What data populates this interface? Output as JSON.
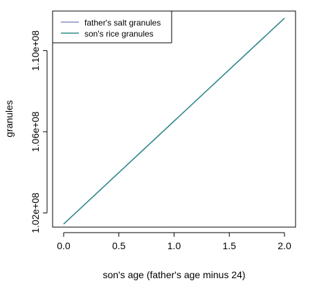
{
  "chart_data": {
    "type": "line",
    "title": "",
    "xlabel": "son's age (father's age minus 24)",
    "ylabel": "granules",
    "xlim": [
      -0.1,
      2.1
    ],
    "ylim": [
      101300000,
      111950000
    ],
    "x_ticks": [
      0.0,
      0.5,
      1.0,
      1.5,
      2.0
    ],
    "x_tick_labels": [
      "0.0",
      "0.5",
      "1.0",
      "1.5",
      "2.0"
    ],
    "y_ticks": [
      102000000,
      106000000,
      110000000
    ],
    "y_tick_labels": [
      "1.02e+08",
      "1.06e+08",
      "1.10e+08"
    ],
    "grid": false,
    "legend_position": "top-left",
    "x": [
      0.0,
      2.0
    ],
    "series": [
      {
        "name": "father's salt granules",
        "color": "#8c8cbe",
        "values": [
          101450000,
          111600000
        ]
      },
      {
        "name": "son's rice granules",
        "color": "#2e8b8b",
        "values": [
          101450000,
          111600000
        ]
      }
    ]
  }
}
